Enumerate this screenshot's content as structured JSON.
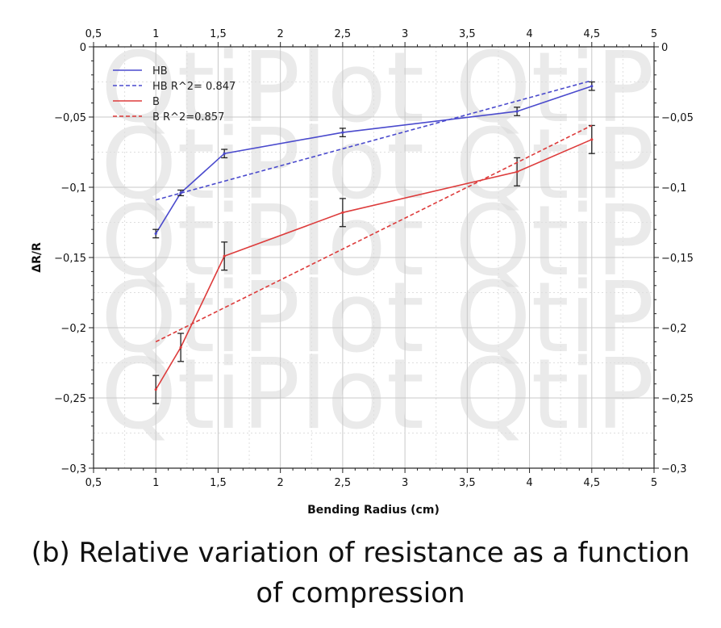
{
  "chart_data": {
    "type": "line",
    "xlabel": "Bending Radius (cm)",
    "ylabel": "ΔR/R",
    "xlim": [
      0.5,
      5
    ],
    "ylim": [
      -0.3,
      0
    ],
    "x_ticks": [
      "0,5",
      "1",
      "1,5",
      "2",
      "2,5",
      "3",
      "3,5",
      "4",
      "4,5",
      "5"
    ],
    "x_tick_values": [
      0.5,
      1,
      1.5,
      2,
      2.5,
      3,
      3.5,
      4,
      4.5,
      5
    ],
    "y_ticks": [
      "0",
      "−0,05",
      "−0,1",
      "−0,15",
      "−0,2",
      "−0,25",
      "−0,3"
    ],
    "y_tick_values": [
      0,
      -0.05,
      -0.1,
      -0.15,
      -0.2,
      -0.25,
      -0.3
    ],
    "grid": true,
    "legend_position": "top-left",
    "watermark": "QtiPlot",
    "series": [
      {
        "name": "HB",
        "color": "#4a4acd",
        "style": "solid",
        "x": [
          1,
          1.2,
          1.55,
          2.5,
          3.9,
          4.5
        ],
        "y": [
          -0.133,
          -0.104,
          -0.076,
          -0.061,
          -0.046,
          -0.028
        ],
        "err": [
          0.003,
          0.002,
          0.003,
          0.003,
          0.003,
          0.003
        ]
      },
      {
        "name": "HB R^2= 0.847",
        "color": "#4a4acd",
        "style": "dashed",
        "x": [
          1,
          4.5
        ],
        "y": [
          -0.109,
          -0.024
        ]
      },
      {
        "name": "B",
        "color": "#dd3b3b",
        "style": "solid",
        "x": [
          1,
          1.2,
          1.55,
          2.5,
          3.9,
          4.5
        ],
        "y": [
          -0.244,
          -0.214,
          -0.149,
          -0.118,
          -0.089,
          -0.066
        ],
        "err": [
          0.01,
          0.01,
          0.01,
          0.01,
          0.01,
          0.01
        ]
      },
      {
        "name": "B R^2=0.857",
        "color": "#dd3b3b",
        "style": "dashed",
        "x": [
          1,
          4.5
        ],
        "y": [
          -0.21,
          -0.056
        ]
      }
    ]
  },
  "caption": {
    "line1": "(b) Relative variation of resistance as a function",
    "line2": "of compression"
  }
}
